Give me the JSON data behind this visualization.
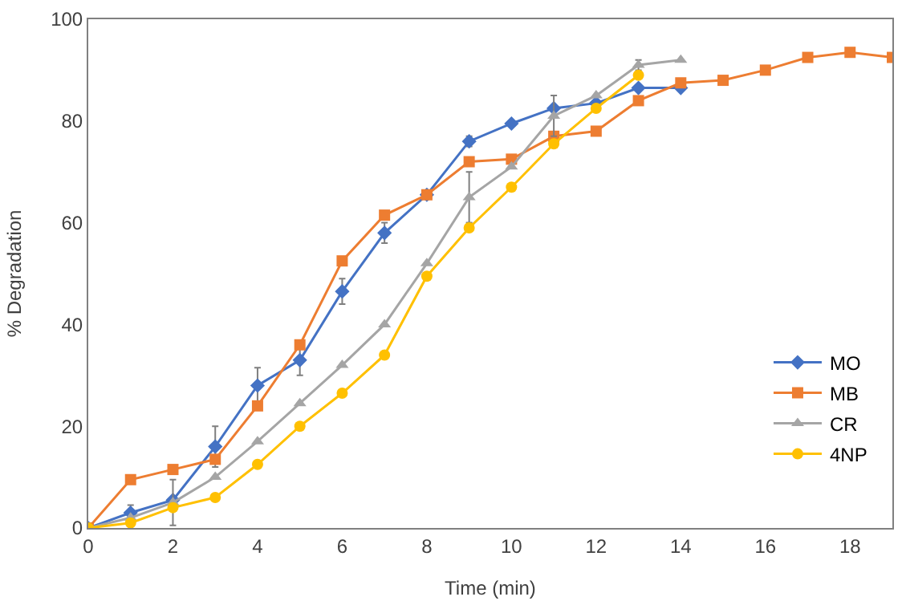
{
  "chart_data": {
    "type": "line",
    "xlabel": "Time (min)",
    "ylabel": "% Degradation",
    "xlim": [
      0,
      19
    ],
    "xticks": [
      0,
      2,
      4,
      6,
      8,
      10,
      12,
      14,
      16,
      18
    ],
    "ylim": [
      0,
      100
    ],
    "yticks": [
      0,
      20,
      40,
      60,
      80,
      100
    ],
    "legend": "bottom right",
    "series": [
      {
        "name": "MO",
        "color": "#4472c4",
        "marker": "diamond",
        "x": [
          0,
          1,
          2,
          3,
          4,
          5,
          6,
          7,
          8,
          9,
          10,
          11,
          12,
          13,
          14
        ],
        "values": [
          0,
          3,
          5.5,
          16,
          28,
          33,
          46.5,
          58,
          65.5,
          76,
          79.5,
          82.5,
          83.5,
          86.5,
          86.5
        ],
        "errors": [
          null,
          1.5,
          null,
          4,
          3.5,
          3,
          2.5,
          2,
          null,
          1,
          null,
          null,
          null,
          null,
          null
        ]
      },
      {
        "name": "MB",
        "color": "#ed7d31",
        "marker": "square",
        "x": [
          0,
          1,
          2,
          3,
          4,
          5,
          6,
          7,
          8,
          9,
          10,
          11,
          12,
          13,
          14,
          15,
          16,
          17,
          18,
          19
        ],
        "values": [
          0,
          9.5,
          11.5,
          13.5,
          24,
          36,
          52.5,
          61.5,
          65.5,
          72,
          72.5,
          77,
          78,
          84,
          87.5,
          88,
          90,
          92.5,
          93.5,
          92.5
        ]
      },
      {
        "name": "CR",
        "color": "#a5a5a5",
        "marker": "triangle",
        "x": [
          0,
          1,
          2,
          3,
          4,
          5,
          6,
          7,
          8,
          9,
          10,
          11,
          12,
          13,
          14
        ],
        "values": [
          0,
          2,
          5,
          10,
          17,
          24.5,
          32,
          40,
          52,
          65,
          71,
          81,
          85,
          91,
          92
        ],
        "errors": [
          null,
          null,
          4.5,
          null,
          null,
          null,
          null,
          null,
          null,
          5,
          null,
          4,
          null,
          1,
          null
        ]
      },
      {
        "name": "4NP",
        "color": "#ffc000",
        "marker": "circle",
        "x": [
          0,
          1,
          2,
          3,
          4,
          5,
          6,
          7,
          8,
          9,
          10,
          11,
          12,
          13
        ],
        "values": [
          0,
          1,
          4,
          6,
          12.5,
          20,
          26.5,
          34,
          49.5,
          59,
          67,
          75.5,
          82.5,
          89
        ]
      }
    ]
  }
}
